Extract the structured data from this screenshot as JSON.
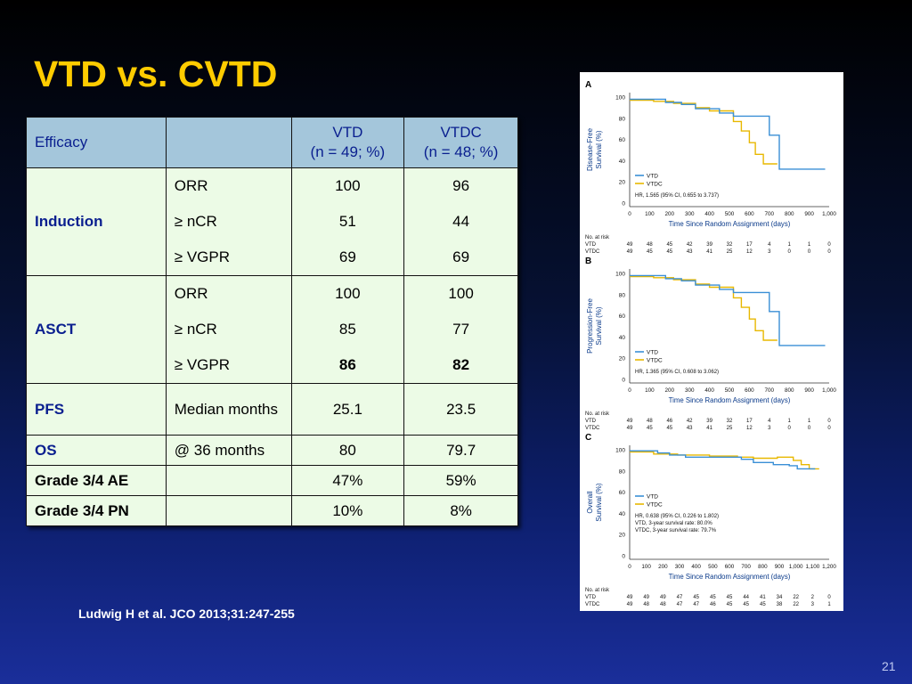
{
  "title": "VTD vs. CVTD",
  "table": {
    "header": {
      "col1": "Efficacy",
      "col2": "",
      "col3_l1": "VTD",
      "col3_l2": "(n = 49; %)",
      "col4_l1": "VTDC",
      "col4_l2": "(n = 48; %)"
    },
    "induction": {
      "label": "Induction",
      "rows": [
        {
          "measure": "ORR",
          "vtd": "100",
          "vtdc": "96"
        },
        {
          "measure": "≥ nCR",
          "vtd": "51",
          "vtdc": "44"
        },
        {
          "measure": "≥ VGPR",
          "vtd": "69",
          "vtdc": "69"
        }
      ]
    },
    "asct": {
      "label": "ASCT",
      "rows": [
        {
          "measure": "ORR",
          "vtd": "100",
          "vtdc": "100"
        },
        {
          "measure": "≥ nCR",
          "vtd": "85",
          "vtdc": "77"
        },
        {
          "measure": "≥ VGPR",
          "vtd": "86",
          "vtdc": "82"
        }
      ]
    },
    "pfs": {
      "label": "PFS",
      "measure": "Median months",
      "vtd": "25.1",
      "vtdc": "23.5"
    },
    "os": {
      "label": "OS",
      "measure": "@ 36 months",
      "vtd": "80",
      "vtdc": "79.7"
    },
    "ae": {
      "label": "Grade 3/4 AE",
      "vtd": "47%",
      "vtdc": "59%"
    },
    "pn": {
      "label": "Grade 3/4 PN",
      "vtd": "10%",
      "vtdc": "8%"
    }
  },
  "figure": {
    "xlabel": "Time Since Random Assignment (days)",
    "legend_vtd": "VTD",
    "legend_vtdc": "VTDC",
    "vtd_color": "#3a8fd6",
    "vtdc_color": "#e8b800",
    "at_risk_label": "No. at risk",
    "panels": [
      {
        "letter": "A",
        "ylabel1": "Disease-Free",
        "ylabel2": "Survival (%)",
        "notes": [
          "HR, 1.565 (95% CI, 0.655 to 3.737)"
        ],
        "xticks": [
          "0",
          "100",
          "200",
          "300",
          "400",
          "500",
          "600",
          "700",
          "800",
          "900",
          "1,000"
        ],
        "yticks": [
          "100",
          "80",
          "60",
          "40",
          "20",
          "0"
        ],
        "risk_vtd": [
          "49",
          "48",
          "45",
          "42",
          "39",
          "32",
          "17",
          "4",
          "1",
          "1",
          "0"
        ],
        "risk_vtdc": [
          "49",
          "45",
          "45",
          "43",
          "41",
          "25",
          "12",
          "3",
          "0",
          "0",
          "0"
        ]
      },
      {
        "letter": "B",
        "ylabel1": "Progression-Free",
        "ylabel2": "Survival (%)",
        "notes": [
          "HR, 1.365 (95% CI, 0.608 to 3.062)"
        ],
        "xticks": [
          "0",
          "100",
          "200",
          "300",
          "400",
          "500",
          "600",
          "700",
          "800",
          "900",
          "1,000"
        ],
        "yticks": [
          "100",
          "80",
          "60",
          "40",
          "20",
          "0"
        ],
        "risk_vtd": [
          "49",
          "48",
          "46",
          "42",
          "39",
          "32",
          "17",
          "4",
          "1",
          "1",
          "0"
        ],
        "risk_vtdc": [
          "49",
          "45",
          "45",
          "43",
          "41",
          "25",
          "12",
          "3",
          "0",
          "0",
          "0"
        ]
      },
      {
        "letter": "C",
        "ylabel1": "Overall",
        "ylabel2": "Survival (%)",
        "notes": [
          "HR, 0.638 (95% CI, 0.226 to 1.802)",
          "VTD, 3-year survival rate: 80.0%",
          "VTDC, 3-year survival rate: 79.7%"
        ],
        "xticks": [
          "0",
          "100",
          "200",
          "300",
          "400",
          "500",
          "600",
          "700",
          "800",
          "900",
          "1,000",
          "1,100",
          "1,200"
        ],
        "yticks": [
          "100",
          "80",
          "60",
          "40",
          "20",
          "0"
        ],
        "risk_vtd": [
          "49",
          "49",
          "49",
          "47",
          "45",
          "45",
          "45",
          "44",
          "41",
          "34",
          "22",
          "2",
          "0"
        ],
        "risk_vtdc": [
          "49",
          "48",
          "48",
          "47",
          "47",
          "46",
          "45",
          "45",
          "45",
          "38",
          "22",
          "3",
          "1"
        ]
      }
    ]
  },
  "citation": "Ludwig H et al. JCO 2013;31:247-255",
  "page_number": "21"
}
